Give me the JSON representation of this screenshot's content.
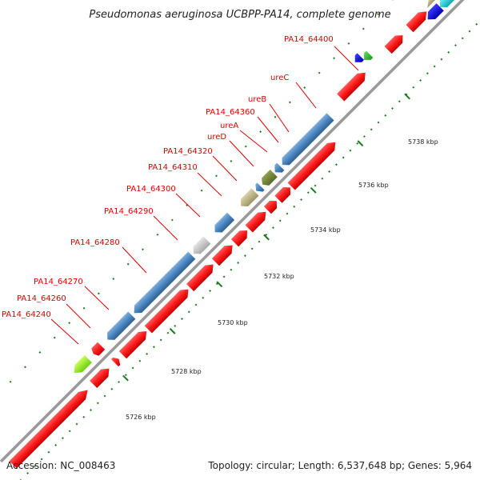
{
  "title": "Pseudomonas aeruginosa UCBPP-PA14, complete genome",
  "footer": {
    "accession": "Accession: NC_008463",
    "summary": "Topology: circular; Length: 6,537,648 bp; Genes: 5,964"
  },
  "gene_labels": [
    "PA14_64400",
    "ureC",
    "ureB",
    "PA14_64360",
    "ureA",
    "ureD",
    "PA14_64320",
    "PA14_64310",
    "PA14_64300",
    "PA14_64290",
    "PA14_64280",
    "PA14_64270",
    "PA14_64260",
    "PA14_64240"
  ],
  "tick_labels": [
    "5726 kbp",
    "5728 kbp",
    "5730 kbp",
    "5732 kbp",
    "5734 kbp",
    "5736 kbp",
    "5738 kbp"
  ],
  "colors": {
    "forward_gene": "#ff1a1a",
    "reverse_gene": "#4a86c0",
    "backbone": "#9a9a9a",
    "ticks": "#1a7a1a",
    "labels": "#e00000"
  }
}
